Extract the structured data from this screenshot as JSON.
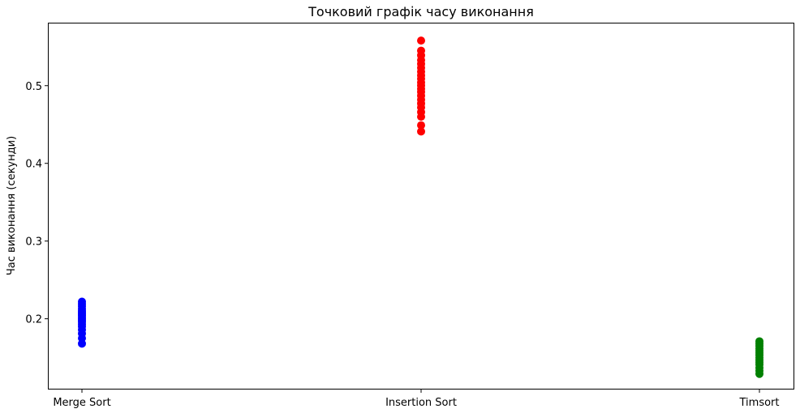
{
  "chart_data": {
    "type": "scatter",
    "title": "Точковий графік часу виконання",
    "xlabel": "",
    "ylabel": "Час виконання (секунди)",
    "categories": [
      "Merge Sort",
      "Insertion Sort",
      "Timsort"
    ],
    "ylim": [
      0.11,
      0.58
    ],
    "yticks": [
      0.2,
      0.3,
      0.4,
      0.5
    ],
    "grid": false,
    "series": [
      {
        "category": "Merge Sort",
        "color": "#0000ff",
        "values": [
          0.168,
          0.175,
          0.181,
          0.186,
          0.19,
          0.193,
          0.196,
          0.198,
          0.2,
          0.202,
          0.204,
          0.206,
          0.208,
          0.21,
          0.213,
          0.216,
          0.219,
          0.222
        ]
      },
      {
        "category": "Insertion Sort",
        "color": "#ff0000",
        "values": [
          0.441,
          0.449,
          0.46,
          0.466,
          0.472,
          0.477,
          0.482,
          0.487,
          0.492,
          0.496,
          0.5,
          0.504,
          0.509,
          0.513,
          0.518,
          0.523,
          0.528,
          0.533,
          0.539,
          0.545,
          0.558
        ]
      },
      {
        "category": "Timsort",
        "color": "#008000",
        "values": [
          0.129,
          0.133,
          0.137,
          0.141,
          0.144,
          0.147,
          0.15,
          0.153,
          0.156,
          0.159,
          0.162,
          0.165,
          0.168,
          0.171
        ]
      }
    ]
  }
}
